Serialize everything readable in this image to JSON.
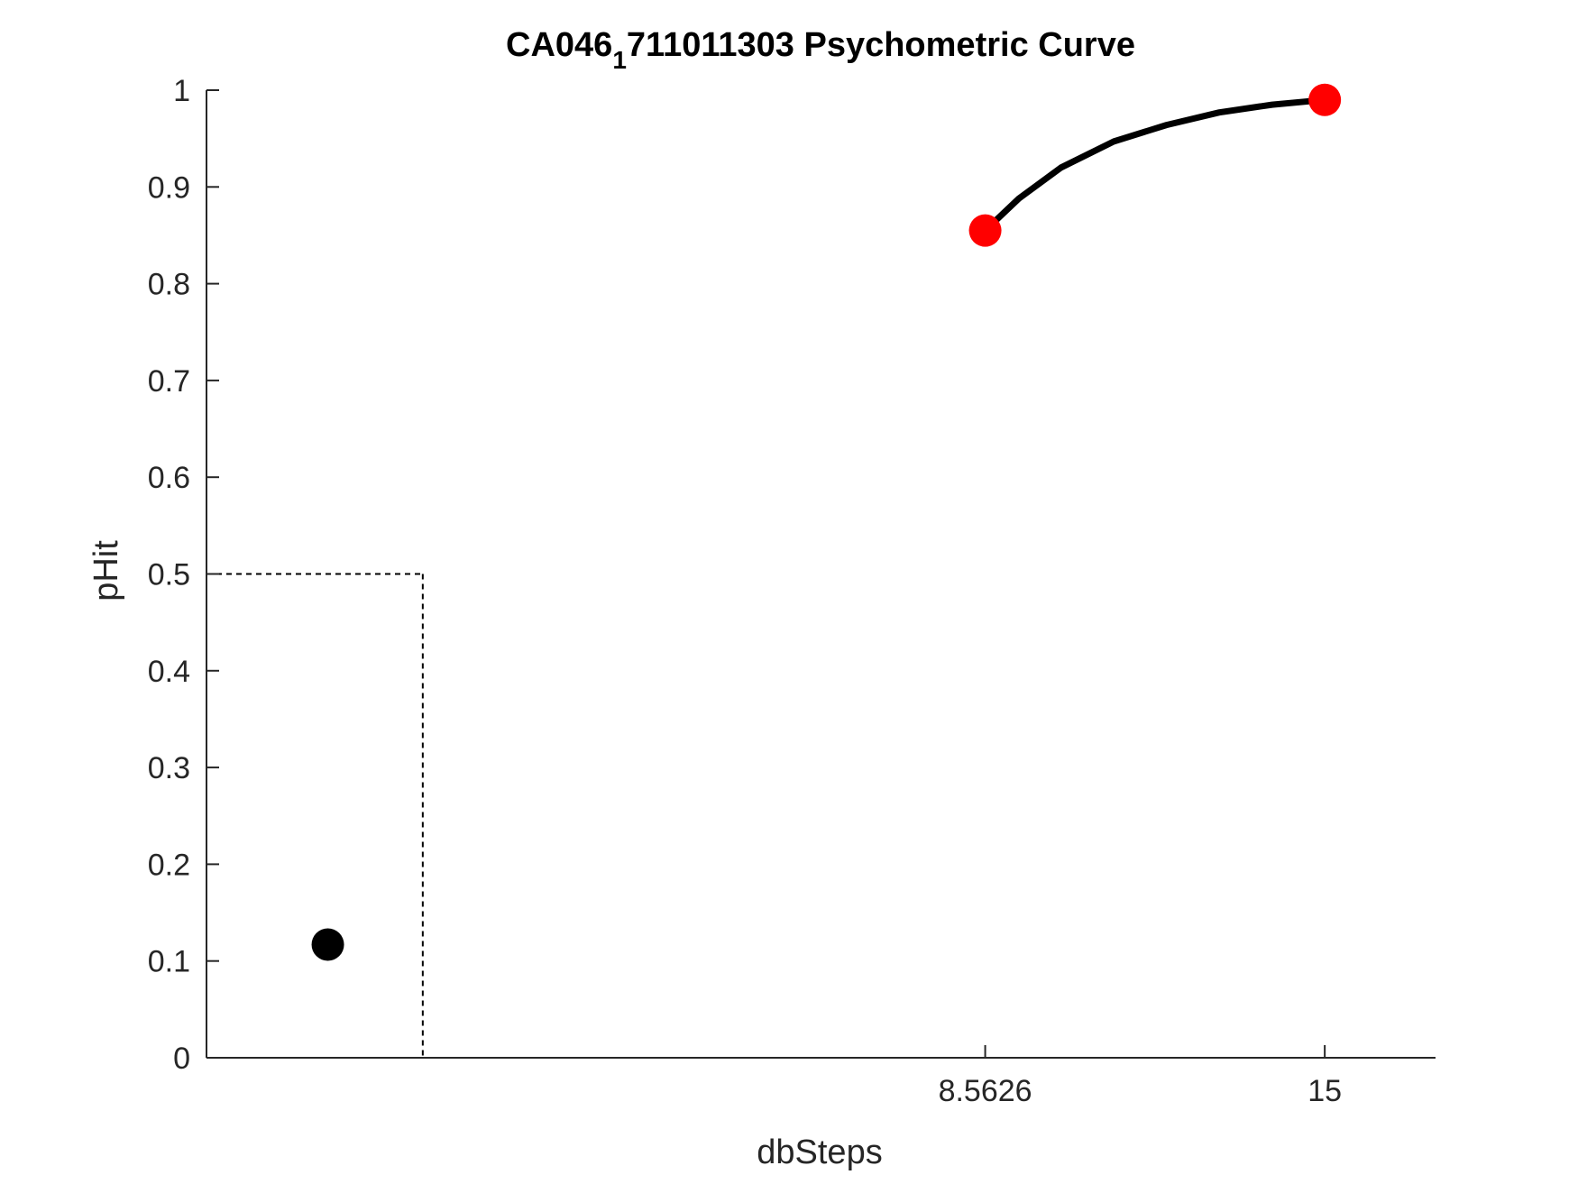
{
  "chart_data": {
    "type": "line",
    "title_main": "CA046",
    "title_sub": "1",
    "title_rest": "711011303 Psychometric Curve",
    "xlabel": "dbSteps",
    "ylabel": "pHit",
    "xlim": [
      -6.2,
      17.1
    ],
    "ylim": [
      0,
      1
    ],
    "xtick_values": [
      8.5626,
      15
    ],
    "xtick_labels": [
      "8.5626",
      "15"
    ],
    "ytick_values": [
      0,
      0.1,
      0.2,
      0.3,
      0.4,
      0.5,
      0.6,
      0.7,
      0.8,
      0.9,
      1
    ],
    "ytick_labels": [
      "0",
      "0.1",
      "0.2",
      "0.3",
      "0.4",
      "0.5",
      "0.6",
      "0.7",
      "0.8",
      "0.9",
      "1"
    ],
    "reference_lines": {
      "y": 0.5,
      "x": -2.1
    },
    "series": [
      {
        "style": "markers",
        "color": "#000000",
        "x": [
          -3.9
        ],
        "y": [
          0.117
        ]
      },
      {
        "style": "markers",
        "color": "#ff0000",
        "x": [
          8.5626,
          15
        ],
        "y": [
          0.855,
          0.99
        ]
      },
      {
        "style": "line",
        "color": "#000000",
        "x": [
          8.5626,
          9.2,
          10,
          11,
          12,
          13,
          14,
          15
        ],
        "y": [
          0.855,
          0.888,
          0.92,
          0.947,
          0.964,
          0.977,
          0.985,
          0.99
        ]
      }
    ]
  }
}
